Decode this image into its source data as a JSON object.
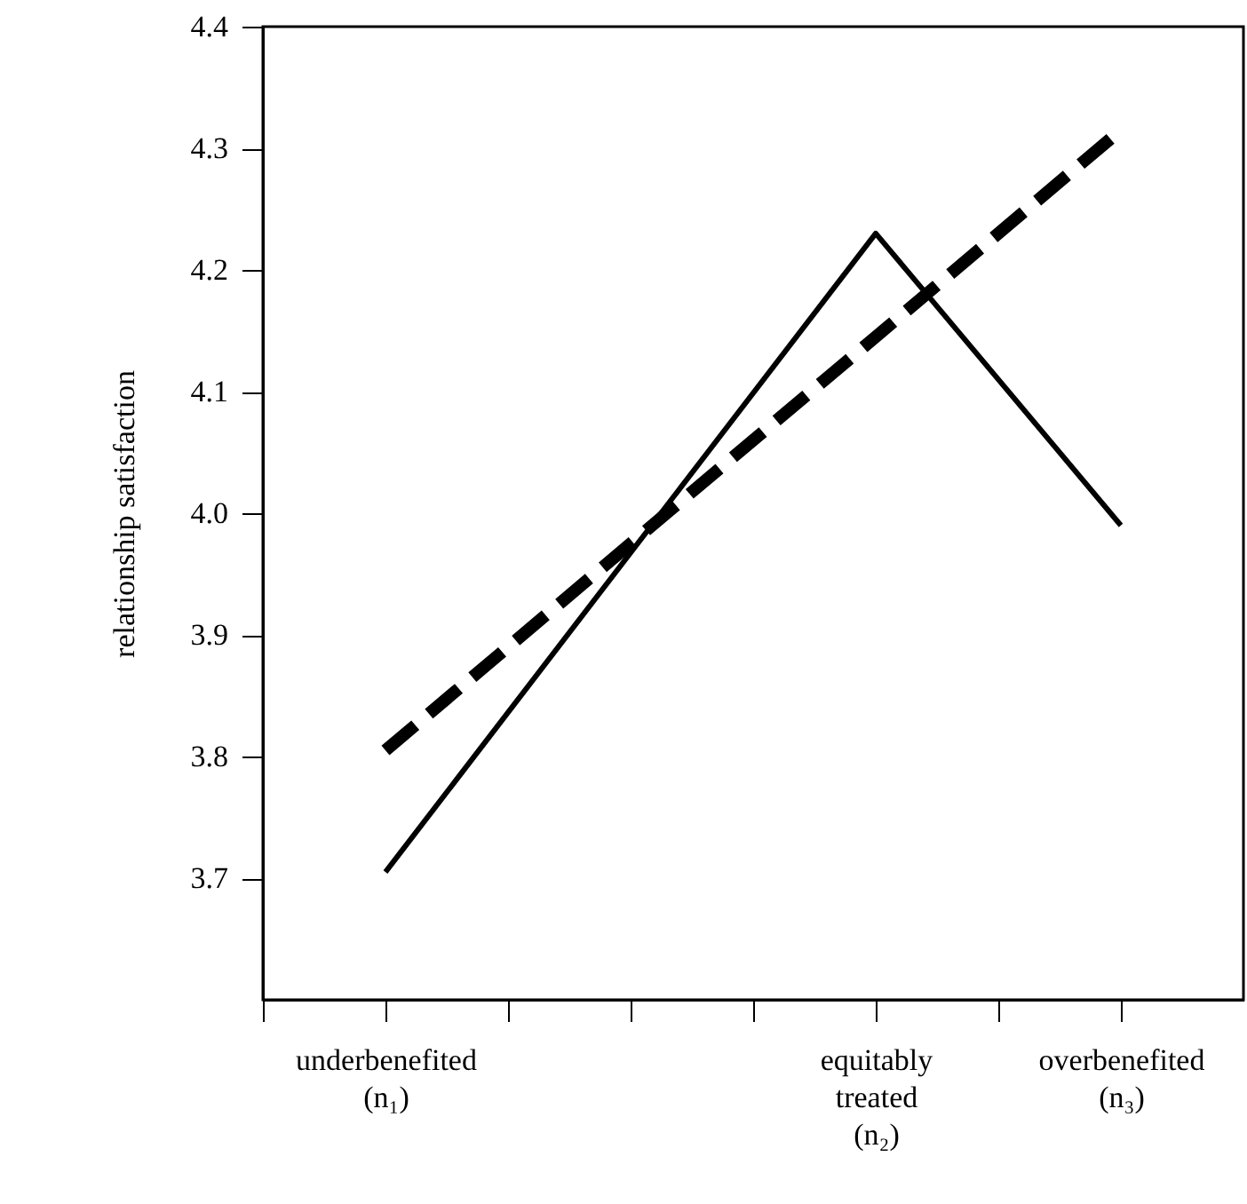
{
  "chart_data": {
    "type": "line",
    "ylabel": "relationship satisfaction",
    "ylim": [
      3.6,
      4.4
    ],
    "categories": [
      null,
      "underbenefited\n(n₁)",
      null,
      null,
      null,
      "equitably\ntreated\n(n₂)",
      null,
      "overbenefited\n(n₃)"
    ],
    "yticks": [
      3.7,
      3.8,
      3.9,
      {
        "value": 4,
        "label": "4.0"
      },
      4.1,
      4.2,
      4.3,
      4.4
    ],
    "marker": "none",
    "series": [
      {
        "type": "line",
        "color": "#000000",
        "line_style": "solid",
        "x": [
          "underbenefited\n(n₁)",
          "equitably\ntreated\n(n₂)",
          "overbenefited\n(n₃)"
        ],
        "values": [
          3.705,
          4.23,
          3.99
        ]
      },
      {
        "type": "line",
        "color": "#000000",
        "line_style": "dashed",
        "x": [
          "underbenefited\n(n₁)",
          "overbenefited\n(n₃)"
        ],
        "values": [
          3.805,
          4.315
        ]
      }
    ]
  }
}
